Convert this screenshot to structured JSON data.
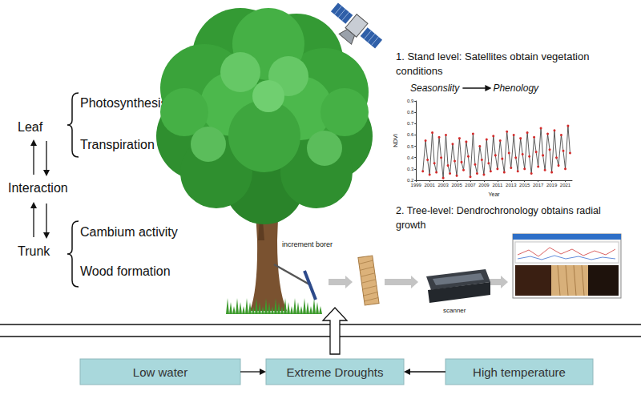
{
  "diagram": {
    "leaf": "Leaf",
    "leaf_items": [
      "Photosynthesis",
      "Transpiration"
    ],
    "interaction": "Interaction",
    "trunk": "Trunk",
    "trunk_items": [
      "Cambium activity",
      "Wood formation"
    ],
    "stand_level": [
      "1. Stand level: Satellites obtain vegetation",
      "conditions"
    ],
    "annotation": {
      "from": "Seasonslity",
      "to": "Phenology"
    },
    "tree_level": [
      "2. Tree-level: Dendrochronology obtains radial",
      "growth"
    ],
    "tools": {
      "borer": "increment borer",
      "scanner": "scanner"
    },
    "drivers": {
      "left": "Low water",
      "center": "Extreme Droughts",
      "right": "High temperature"
    }
  },
  "chart_data": {
    "type": "line",
    "x_label": "Year",
    "y_label": "NDVI",
    "xlim": [
      1999,
      2022
    ],
    "xticks": [
      1999,
      2001,
      2003,
      2005,
      2007,
      2009,
      2011,
      2013,
      2015,
      2017,
      2019,
      2021
    ],
    "ylim": [
      0.2,
      0.9
    ],
    "yticks": [
      0.2,
      0.3,
      0.4,
      0.5,
      0.6,
      0.7,
      0.8,
      0.9
    ],
    "grid": false,
    "color": "#333333",
    "marker": "circle",
    "x": [
      2000,
      2000.4,
      2000.7,
      2001,
      2001.4,
      2001.7,
      2002,
      2002.4,
      2002.7,
      2003,
      2003.4,
      2003.7,
      2004,
      2004.4,
      2004.7,
      2005,
      2005.4,
      2005.7,
      2006,
      2006.4,
      2006.7,
      2007,
      2007.4,
      2007.7,
      2008,
      2008.4,
      2008.7,
      2009,
      2009.4,
      2009.7,
      2010,
      2010.4,
      2010.7,
      2011,
      2011.4,
      2011.7,
      2012,
      2012.4,
      2012.7,
      2013,
      2013.4,
      2013.7,
      2014,
      2014.4,
      2014.7,
      2015,
      2015.4,
      2015.7,
      2016,
      2016.4,
      2016.7,
      2017,
      2017.4,
      2017.7,
      2018,
      2018.4,
      2018.7,
      2019,
      2019.4,
      2019.7,
      2020,
      2020.4,
      2020.7,
      2021,
      2021.4,
      2021.7
    ],
    "values": [
      0.28,
      0.55,
      0.38,
      0.25,
      0.62,
      0.35,
      0.27,
      0.58,
      0.4,
      0.22,
      0.6,
      0.33,
      0.26,
      0.52,
      0.37,
      0.24,
      0.57,
      0.36,
      0.29,
      0.54,
      0.41,
      0.23,
      0.61,
      0.34,
      0.26,
      0.5,
      0.38,
      0.25,
      0.56,
      0.35,
      0.28,
      0.59,
      0.42,
      0.3,
      0.55,
      0.39,
      0.27,
      0.63,
      0.44,
      0.31,
      0.6,
      0.4,
      0.28,
      0.57,
      0.43,
      0.3,
      0.62,
      0.41,
      0.26,
      0.58,
      0.45,
      0.32,
      0.66,
      0.42,
      0.29,
      0.61,
      0.47,
      0.27,
      0.64,
      0.4,
      0.33,
      0.6,
      0.46,
      0.3,
      0.68,
      0.44
    ]
  }
}
